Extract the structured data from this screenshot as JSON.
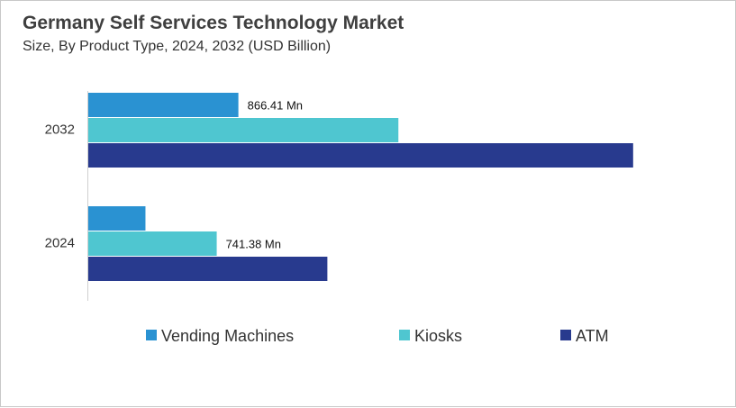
{
  "chart_data": {
    "type": "bar",
    "orientation": "horizontal",
    "title": "Germany Self Services Technology Market",
    "subtitle": "Size, By Product Type, 2024, 2032 (USD Billion)",
    "categories": [
      "2032",
      "2024"
    ],
    "series": [
      {
        "name": "Vending Machines",
        "color": "#2a92d2",
        "values": [
          866.41,
          330
        ],
        "data_labels": [
          "866.41 Mn",
          null
        ]
      },
      {
        "name": "Kiosks",
        "color": "#4fc6d0",
        "values": [
          1790,
          741.38
        ],
        "data_labels": [
          null,
          "741.38 Mn"
        ]
      },
      {
        "name": "ATM",
        "color": "#283a8e",
        "values": [
          3145,
          1380
        ],
        "data_labels": [
          null,
          null
        ]
      }
    ],
    "legend": "bottom",
    "grid": false,
    "value_axis_visible": false
  }
}
